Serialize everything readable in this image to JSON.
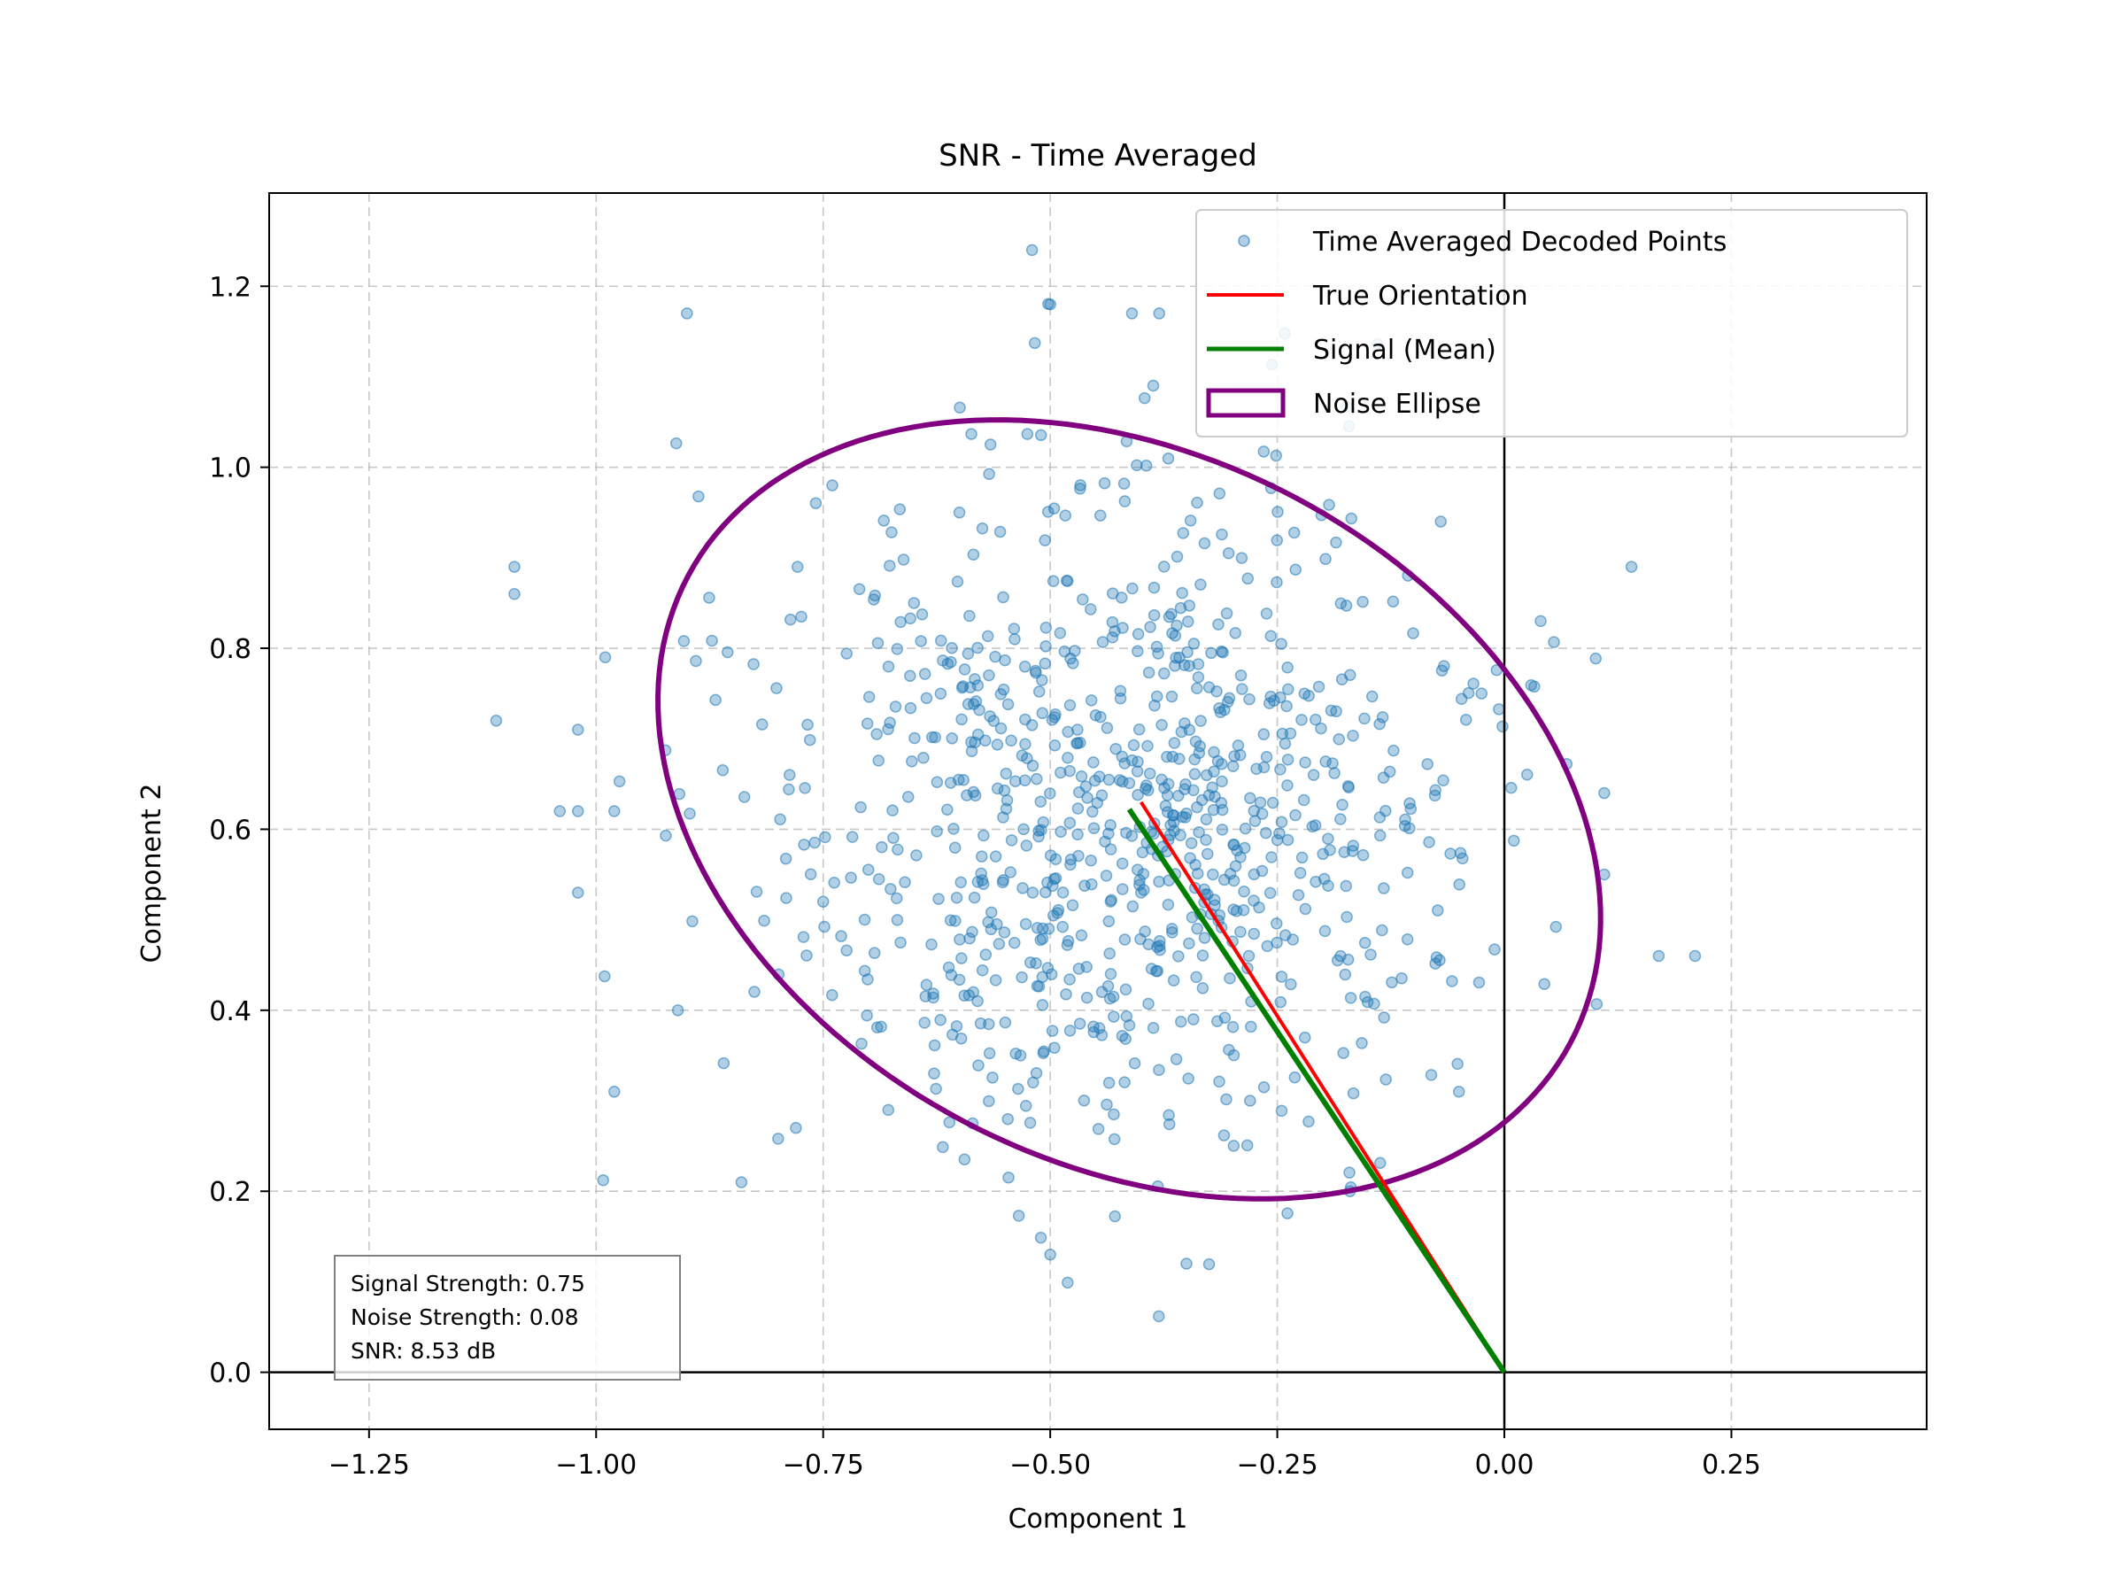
{
  "chart_data": {
    "type": "scatter",
    "title": "SNR - Time Averaged",
    "xlabel": "Component 1",
    "ylabel": "Component 2",
    "xlim": [
      -1.36,
      0.465
    ],
    "ylim": [
      -0.063,
      1.303
    ],
    "xticks": [
      -1.25,
      -1.0,
      -0.75,
      -0.5,
      -0.25,
      0.0,
      0.25
    ],
    "xtick_labels": [
      "−1.25",
      "−1.00",
      "−0.75",
      "−0.50",
      "−0.25",
      "0.00",
      "0.25"
    ],
    "yticks": [
      0.0,
      0.2,
      0.4,
      0.6,
      0.8,
      1.0,
      1.2
    ],
    "ytick_labels": [
      "0.0",
      "0.2",
      "0.4",
      "0.6",
      "0.8",
      "1.0",
      "1.2"
    ],
    "grid": true,
    "legend_position": "top-right",
    "colors": {
      "points": "#1f77b4",
      "true_orientation": "#ff0000",
      "signal_mean": "#008000",
      "noise_ellipse": "#800080"
    },
    "series": [
      {
        "name": "Time Averaged Decoded Points",
        "kind": "scatter",
        "n_points": 900,
        "center": [
          -0.42,
          0.62
        ],
        "spread": [
          0.19,
          0.19
        ],
        "sample_points": [
          [
            -0.52,
            1.24
          ],
          [
            -0.9,
            1.17
          ],
          [
            -0.5,
            1.18
          ],
          [
            -0.38,
            1.17
          ],
          [
            -0.41,
            1.17
          ],
          [
            -1.11,
            0.72
          ],
          [
            -1.09,
            0.89
          ],
          [
            -1.09,
            0.86
          ],
          [
            -0.99,
            0.79
          ],
          [
            -1.02,
            0.71
          ],
          [
            -1.04,
            0.62
          ],
          [
            -1.02,
            0.62
          ],
          [
            -0.98,
            0.62
          ],
          [
            -1.02,
            0.53
          ],
          [
            -0.98,
            0.31
          ],
          [
            0.14,
            0.89
          ],
          [
            0.21,
            0.46
          ],
          [
            0.17,
            0.46
          ],
          [
            0.11,
            0.64
          ],
          [
            0.11,
            0.55
          ],
          [
            -0.35,
            0.12
          ],
          [
            -0.5,
            0.13
          ],
          [
            -0.84,
            0.21
          ],
          [
            -0.78,
            0.27
          ],
          [
            -0.91,
            0.4
          ],
          [
            -0.75,
            0.52
          ],
          [
            -0.65,
            0.85
          ],
          [
            -0.47,
            0.71
          ],
          [
            -0.33,
            0.48
          ],
          [
            -0.21,
            0.66
          ],
          [
            -0.05,
            0.31
          ],
          [
            0.04,
            0.83
          ],
          [
            -0.07,
            0.94
          ],
          [
            -0.17,
            0.2
          ],
          [
            -0.28,
            0.3
          ],
          [
            -0.6,
            0.95
          ],
          [
            -0.74,
            0.98
          ],
          [
            -0.56,
            0.57
          ],
          [
            -0.4,
            0.53
          ],
          [
            -0.29,
            0.77
          ]
        ]
      },
      {
        "name": "True Orientation",
        "kind": "line",
        "x": [
          0.0,
          -0.4
        ],
        "y": [
          0.0,
          0.63
        ]
      },
      {
        "name": "Signal (Mean)",
        "kind": "line",
        "x": [
          0.0,
          -0.413
        ],
        "y": [
          0.0,
          0.622
        ]
      },
      {
        "name": "Noise Ellipse",
        "kind": "ellipse",
        "center": [
          -0.413,
          0.622
        ],
        "semi_axis_major": 0.55,
        "semi_axis_minor": 0.39,
        "angle_deg": -28
      }
    ],
    "reference_lines": {
      "x": 0.0,
      "y": 0.0
    },
    "stats_box": [
      "Signal Strength: 0.75",
      "Noise Strength: 0.08",
      "SNR: 8.53 dB"
    ]
  }
}
